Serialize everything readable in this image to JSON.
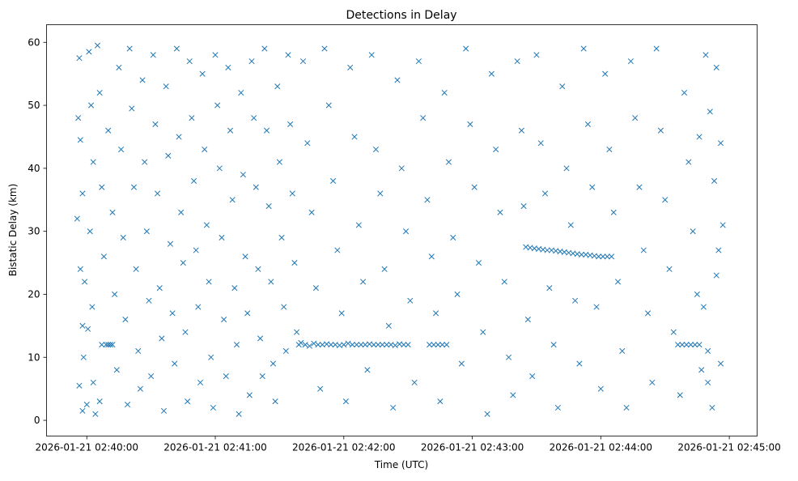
{
  "chart_data": {
    "type": "scatter",
    "title": "Detections in Delay",
    "xlabel": "Time (UTC)",
    "ylabel": "Bistatic Delay (km)",
    "x_unit": "seconds after 2026-01-21 02:40:00",
    "xlim": [
      -18.8,
      313
    ],
    "ylim": [
      -2.5,
      62.8
    ],
    "xticks": [
      {
        "v": 0,
        "label": "2026-01-21 02:40:00"
      },
      {
        "v": 60,
        "label": "2026-01-21 02:41:00"
      },
      {
        "v": 120,
        "label": "2026-01-21 02:42:00"
      },
      {
        "v": 180,
        "label": "2026-01-21 02:43:00"
      },
      {
        "v": 240,
        "label": "2026-01-21 02:44:00"
      },
      {
        "v": 300,
        "label": "2026-01-21 02:45:00"
      }
    ],
    "yticks": [
      0,
      10,
      20,
      30,
      40,
      50,
      60
    ],
    "marker": "x",
    "color": "#1f77b4",
    "grid": false,
    "series": [
      {
        "name": "detections",
        "points": [
          [
            -4,
            48
          ],
          [
            -3.5,
            57.5
          ],
          [
            -3,
            44.5
          ],
          [
            -2,
            36
          ],
          [
            -1,
            22
          ],
          [
            -4.5,
            32
          ],
          [
            -3,
            24
          ],
          [
            -2,
            15
          ],
          [
            -1.5,
            10
          ],
          [
            -3.5,
            5.5
          ],
          [
            -2,
            1.5
          ],
          [
            0,
            2.5
          ],
          [
            1,
            58.5
          ],
          [
            2,
            50
          ],
          [
            3,
            41
          ],
          [
            1.5,
            30
          ],
          [
            2.5,
            18
          ],
          [
            0.5,
            14.5
          ],
          [
            3,
            6
          ],
          [
            4,
            1
          ],
          [
            5,
            59.5
          ],
          [
            6,
            52
          ],
          [
            7,
            37
          ],
          [
            8,
            26
          ],
          [
            7,
            12
          ],
          [
            9,
            12
          ],
          [
            10,
            12
          ],
          [
            11,
            12
          ],
          [
            12,
            12
          ],
          [
            6,
            3
          ],
          [
            10,
            46
          ],
          [
            12,
            33
          ],
          [
            13,
            20
          ],
          [
            14,
            8
          ],
          [
            15,
            56
          ],
          [
            16,
            43
          ],
          [
            17,
            29
          ],
          [
            18,
            16
          ],
          [
            19,
            2.5
          ],
          [
            20,
            59
          ],
          [
            21,
            49.5
          ],
          [
            22,
            37
          ],
          [
            23,
            24
          ],
          [
            24,
            11
          ],
          [
            25,
            5
          ],
          [
            26,
            54
          ],
          [
            27,
            41
          ],
          [
            28,
            30
          ],
          [
            29,
            19
          ],
          [
            30,
            7
          ],
          [
            31,
            58
          ],
          [
            32,
            47
          ],
          [
            33,
            36
          ],
          [
            34,
            21
          ],
          [
            35,
            13
          ],
          [
            36,
            1.5
          ],
          [
            37,
            53
          ],
          [
            38,
            42
          ],
          [
            39,
            28
          ],
          [
            40,
            17
          ],
          [
            41,
            9
          ],
          [
            42,
            59
          ],
          [
            43,
            45
          ],
          [
            44,
            33
          ],
          [
            45,
            25
          ],
          [
            46,
            14
          ],
          [
            47,
            3
          ],
          [
            48,
            57
          ],
          [
            49,
            48
          ],
          [
            50,
            38
          ],
          [
            51,
            27
          ],
          [
            52,
            18
          ],
          [
            53,
            6
          ],
          [
            54,
            55
          ],
          [
            55,
            43
          ],
          [
            56,
            31
          ],
          [
            57,
            22
          ],
          [
            58,
            10
          ],
          [
            59,
            2
          ],
          [
            60,
            58
          ],
          [
            61,
            50
          ],
          [
            62,
            40
          ],
          [
            63,
            29
          ],
          [
            64,
            16
          ],
          [
            65,
            7
          ],
          [
            66,
            56
          ],
          [
            67,
            46
          ],
          [
            68,
            35
          ],
          [
            69,
            21
          ],
          [
            70,
            12
          ],
          [
            71,
            1
          ],
          [
            72,
            52
          ],
          [
            73,
            39
          ],
          [
            74,
            26
          ],
          [
            75,
            17
          ],
          [
            76,
            4
          ],
          [
            77,
            57
          ],
          [
            78,
            48
          ],
          [
            79,
            37
          ],
          [
            80,
            24
          ],
          [
            81,
            13
          ],
          [
            82,
            7
          ],
          [
            83,
            59
          ],
          [
            84,
            46
          ],
          [
            85,
            34
          ],
          [
            86,
            22
          ],
          [
            87,
            9
          ],
          [
            88,
            3
          ],
          [
            89,
            53
          ],
          [
            90,
            41
          ],
          [
            91,
            29
          ],
          [
            92,
            18
          ],
          [
            93,
            11
          ],
          [
            94,
            58
          ],
          [
            95,
            47
          ],
          [
            96,
            36
          ],
          [
            97,
            25
          ],
          [
            98,
            14
          ],
          [
            99,
            12
          ],
          [
            100,
            12.3
          ],
          [
            102,
            12
          ],
          [
            104,
            11.8
          ],
          [
            106,
            12.2
          ],
          [
            108,
            12
          ],
          [
            110,
            12
          ],
          [
            112,
            12.1
          ],
          [
            114,
            12
          ],
          [
            116,
            12
          ],
          [
            118,
            11.9
          ],
          [
            120,
            12
          ],
          [
            122,
            12.2
          ],
          [
            124,
            12
          ],
          [
            126,
            12
          ],
          [
            128,
            12
          ],
          [
            130,
            12
          ],
          [
            132,
            12.1
          ],
          [
            134,
            12
          ],
          [
            136,
            12
          ],
          [
            138,
            12
          ],
          [
            140,
            12
          ],
          [
            142,
            12
          ],
          [
            144,
            11.9
          ],
          [
            146,
            12.1
          ],
          [
            148,
            12
          ],
          [
            150,
            12
          ],
          [
            101,
            57
          ],
          [
            103,
            44
          ],
          [
            105,
            33
          ],
          [
            107,
            21
          ],
          [
            109,
            5
          ],
          [
            111,
            59
          ],
          [
            113,
            50
          ],
          [
            115,
            38
          ],
          [
            117,
            27
          ],
          [
            119,
            17
          ],
          [
            121,
            3
          ],
          [
            123,
            56
          ],
          [
            125,
            45
          ],
          [
            127,
            31
          ],
          [
            129,
            22
          ],
          [
            131,
            8
          ],
          [
            133,
            58
          ],
          [
            135,
            43
          ],
          [
            137,
            36
          ],
          [
            139,
            24
          ],
          [
            141,
            15
          ],
          [
            143,
            2
          ],
          [
            145,
            54
          ],
          [
            147,
            40
          ],
          [
            149,
            30
          ],
          [
            151,
            19
          ],
          [
            153,
            6
          ],
          [
            155,
            57
          ],
          [
            157,
            48
          ],
          [
            159,
            35
          ],
          [
            160,
            12
          ],
          [
            162,
            12
          ],
          [
            164,
            12
          ],
          [
            166,
            12
          ],
          [
            168,
            12
          ],
          [
            161,
            26
          ],
          [
            163,
            17
          ],
          [
            165,
            3
          ],
          [
            167,
            52
          ],
          [
            169,
            41
          ],
          [
            171,
            29
          ],
          [
            173,
            20
          ],
          [
            175,
            9
          ],
          [
            177,
            59
          ],
          [
            179,
            47
          ],
          [
            181,
            37
          ],
          [
            183,
            25
          ],
          [
            185,
            14
          ],
          [
            187,
            1
          ],
          [
            189,
            55
          ],
          [
            191,
            43
          ],
          [
            193,
            33
          ],
          [
            195,
            22
          ],
          [
            197,
            10
          ],
          [
            199,
            4
          ],
          [
            201,
            57
          ],
          [
            203,
            46
          ],
          [
            205,
            27.5
          ],
          [
            207,
            27.4
          ],
          [
            209,
            27.3
          ],
          [
            211,
            27.2
          ],
          [
            213,
            27.1
          ],
          [
            215,
            27
          ],
          [
            217,
            27
          ],
          [
            219,
            26.9
          ],
          [
            221,
            26.8
          ],
          [
            223,
            26.7
          ],
          [
            225,
            26.6
          ],
          [
            227,
            26.5
          ],
          [
            229,
            26.4
          ],
          [
            231,
            26.3
          ],
          [
            233,
            26.3
          ],
          [
            235,
            26.2
          ],
          [
            237,
            26.1
          ],
          [
            239,
            26
          ],
          [
            241,
            26
          ],
          [
            243,
            26
          ],
          [
            245,
            26
          ],
          [
            204,
            34
          ],
          [
            206,
            16
          ],
          [
            208,
            7
          ],
          [
            210,
            58
          ],
          [
            212,
            44
          ],
          [
            214,
            36
          ],
          [
            216,
            21
          ],
          [
            218,
            12
          ],
          [
            220,
            2
          ],
          [
            222,
            53
          ],
          [
            224,
            40
          ],
          [
            226,
            31
          ],
          [
            228,
            19
          ],
          [
            230,
            9
          ],
          [
            232,
            59
          ],
          [
            234,
            47
          ],
          [
            236,
            37
          ],
          [
            238,
            18
          ],
          [
            240,
            5
          ],
          [
            242,
            55
          ],
          [
            244,
            43
          ],
          [
            246,
            33
          ],
          [
            248,
            22
          ],
          [
            250,
            11
          ],
          [
            252,
            2
          ],
          [
            254,
            57
          ],
          [
            256,
            48
          ],
          [
            258,
            37
          ],
          [
            260,
            27
          ],
          [
            262,
            17
          ],
          [
            264,
            6
          ],
          [
            266,
            59
          ],
          [
            268,
            46
          ],
          [
            270,
            35
          ],
          [
            272,
            24
          ],
          [
            274,
            14
          ],
          [
            276,
            12
          ],
          [
            278,
            12
          ],
          [
            280,
            12
          ],
          [
            282,
            12
          ],
          [
            284,
            12
          ],
          [
            286,
            12
          ],
          [
            277,
            4
          ],
          [
            279,
            52
          ],
          [
            281,
            41
          ],
          [
            283,
            30
          ],
          [
            285,
            20
          ],
          [
            287,
            8
          ],
          [
            289,
            58
          ],
          [
            291,
            49
          ],
          [
            293,
            38
          ],
          [
            295,
            27
          ],
          [
            288,
            18
          ],
          [
            290,
            11
          ],
          [
            292,
            2
          ],
          [
            294,
            56
          ],
          [
            296,
            44
          ],
          [
            297,
            31
          ],
          [
            296,
            9
          ],
          [
            294,
            23
          ],
          [
            290,
            6
          ],
          [
            286,
            45
          ]
        ]
      }
    ]
  }
}
